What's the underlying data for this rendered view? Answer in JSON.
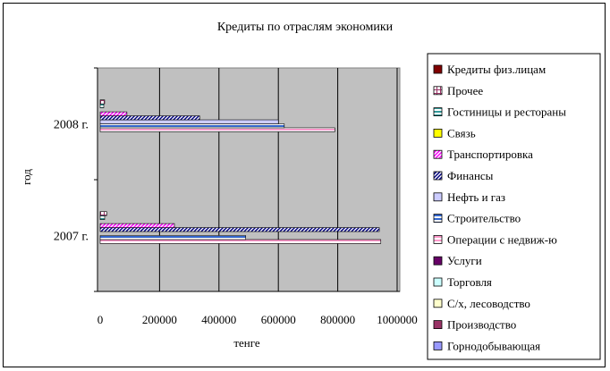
{
  "chart_data": {
    "type": "bar",
    "orientation": "horizontal",
    "title": "Кредиты по отраслям экономики",
    "xlabel": "тенге",
    "ylabel": "год",
    "xlim": [
      0,
      1000000
    ],
    "x_ticks": [
      0,
      200000,
      400000,
      600000,
      800000,
      1000000
    ],
    "grid": "vertical",
    "legend_position": "right",
    "categories": [
      "2007 г.",
      "2008 г."
    ],
    "series": [
      {
        "name": "Горнодобывающая",
        "values": [
          0,
          0
        ],
        "color": "#9999ff",
        "pattern": "solid"
      },
      {
        "name": "Производство",
        "values": [
          0,
          0
        ],
        "color": "#993366",
        "pattern": "solid"
      },
      {
        "name": "С/х, лесоводство",
        "values": [
          0,
          0
        ],
        "color": "#ffffcc",
        "pattern": "solid"
      },
      {
        "name": "Торговля",
        "values": [
          0,
          0
        ],
        "color": "#ccffff",
        "pattern": "solid"
      },
      {
        "name": "Услуги",
        "values": [
          0,
          0
        ],
        "color": "#660066",
        "pattern": "solid"
      },
      {
        "name": "Операции с недвиж-ю",
        "values": [
          945000,
          790000
        ],
        "color": "#ff99cc",
        "pattern": "hlines"
      },
      {
        "name": "Строительство",
        "values": [
          490000,
          620000
        ],
        "color": "#3366cc",
        "pattern": "hlines"
      },
      {
        "name": "Нефть и газ",
        "values": [
          0,
          600000
        ],
        "color": "#ccccff",
        "pattern": "solid"
      },
      {
        "name": "Финансы",
        "values": [
          940000,
          335000
        ],
        "color": "#000080",
        "pattern": "diag"
      },
      {
        "name": "Транспортировка",
        "values": [
          250000,
          90000
        ],
        "color": "#ff00ff",
        "pattern": "diag"
      },
      {
        "name": "Связь",
        "values": [
          0,
          0
        ],
        "color": "#ffff00",
        "pattern": "solid"
      },
      {
        "name": "Гостиницы и рестораны",
        "values": [
          15000,
          12000
        ],
        "color": "#339999",
        "pattern": "hlines"
      },
      {
        "name": "Прочее",
        "values": [
          22000,
          15000
        ],
        "color": "#993366",
        "pattern": "grid"
      },
      {
        "name": "Кредиты физ.лицам",
        "values": [
          0,
          0
        ],
        "color": "#800000",
        "pattern": "solid"
      }
    ]
  }
}
